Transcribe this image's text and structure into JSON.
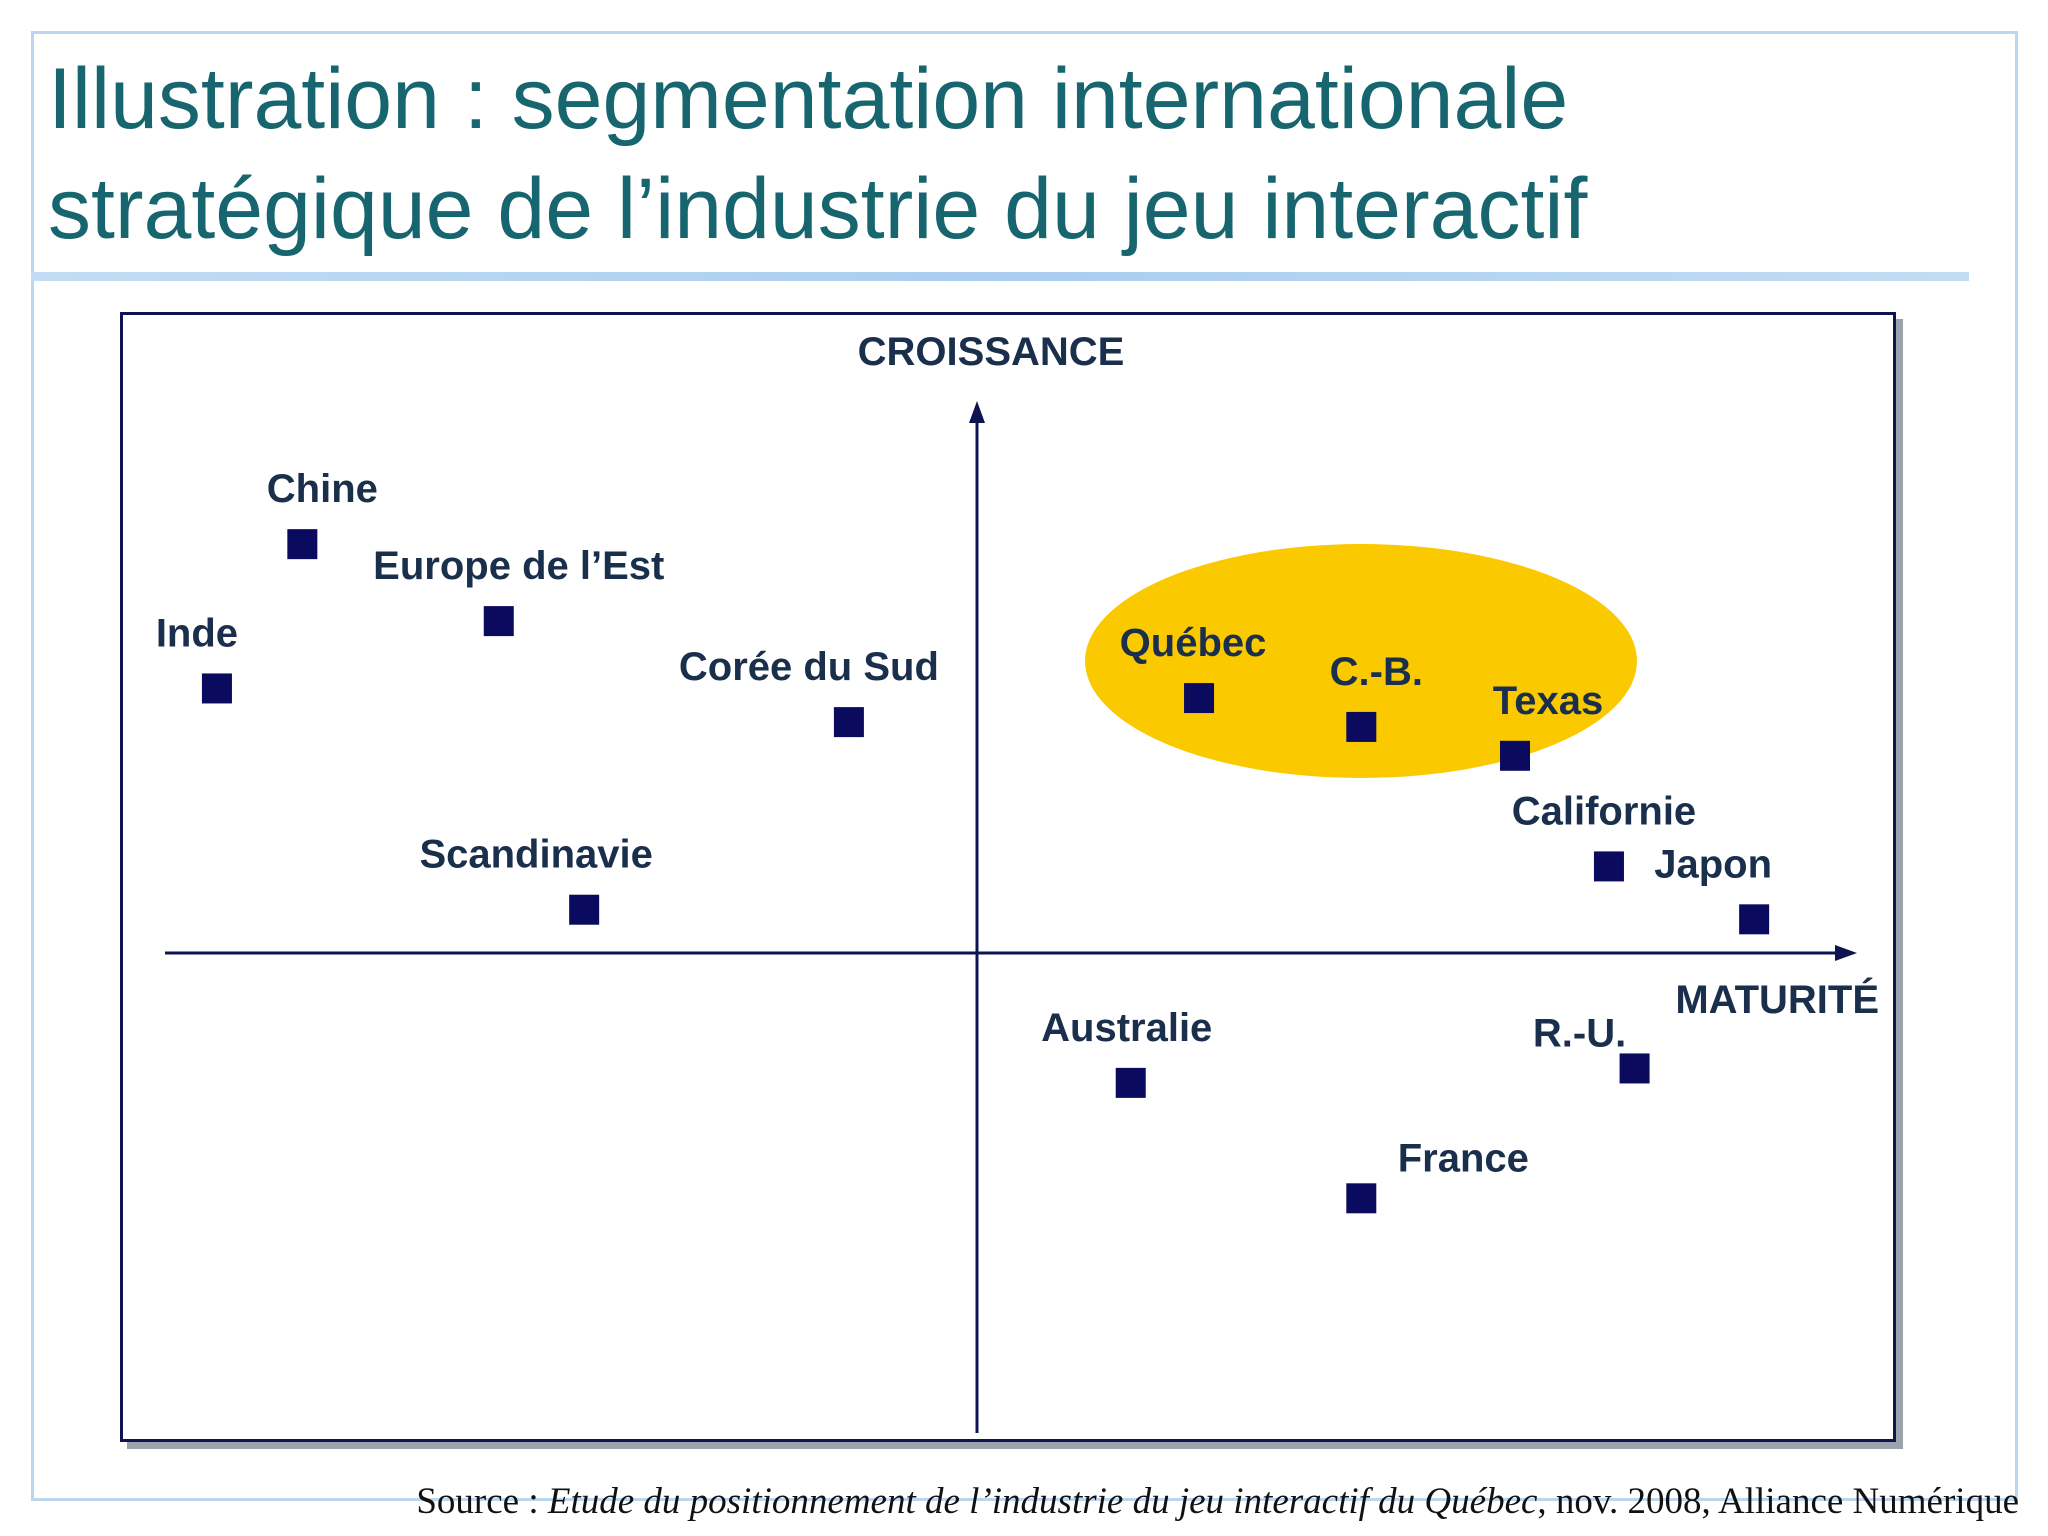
{
  "title": {
    "line1": "Illustration : segmentation internationale",
    "line2": "stratégique de l’industrie du jeu interactif"
  },
  "source": {
    "prefix": "Source : ",
    "work": "Etude du positionnement de l’industrie du jeu interactif du Québec",
    "suffix": ", nov. 2008, Alliance Numérique"
  },
  "colors": {
    "title": "#17656f",
    "marker": "#0a0a5e",
    "axis": "#0f1350",
    "highlight": "#fbc900",
    "frame": "#bcd6f0"
  },
  "chart_data": {
    "type": "scatter",
    "xlabel": "MATURITÉ",
    "ylabel": "CROISSANCE",
    "xlim": [
      -10,
      10
    ],
    "ylim": [
      -10,
      10
    ],
    "grid": false,
    "points": [
      {
        "label": "Chine",
        "x": -7.9,
        "y": 8.5
      },
      {
        "label": "Europe de l’Est",
        "x": -5.6,
        "y": 6.9
      },
      {
        "label": "Inde",
        "x": -8.9,
        "y": 5.5
      },
      {
        "label": "Corée du Sud",
        "x": -1.5,
        "y": 4.8
      },
      {
        "label": "Scandinavie",
        "x": -4.6,
        "y": 0.9
      },
      {
        "label": "Québec",
        "x": 2.6,
        "y": 5.3
      },
      {
        "label": "C.-B.",
        "x": 4.5,
        "y": 4.7
      },
      {
        "label": "Texas",
        "x": 6.3,
        "y": 4.1
      },
      {
        "label": "Californie",
        "x": 7.4,
        "y": 1.8
      },
      {
        "label": "Japon",
        "x": 9.1,
        "y": 0.7
      },
      {
        "label": "Australie",
        "x": 1.8,
        "y": -2.7
      },
      {
        "label": "R.-U.",
        "x": 7.7,
        "y": -2.4
      },
      {
        "label": "France",
        "x": 4.5,
        "y": -5.1
      }
    ],
    "highlight_group": [
      "Québec",
      "C.-B.",
      "Texas"
    ]
  }
}
